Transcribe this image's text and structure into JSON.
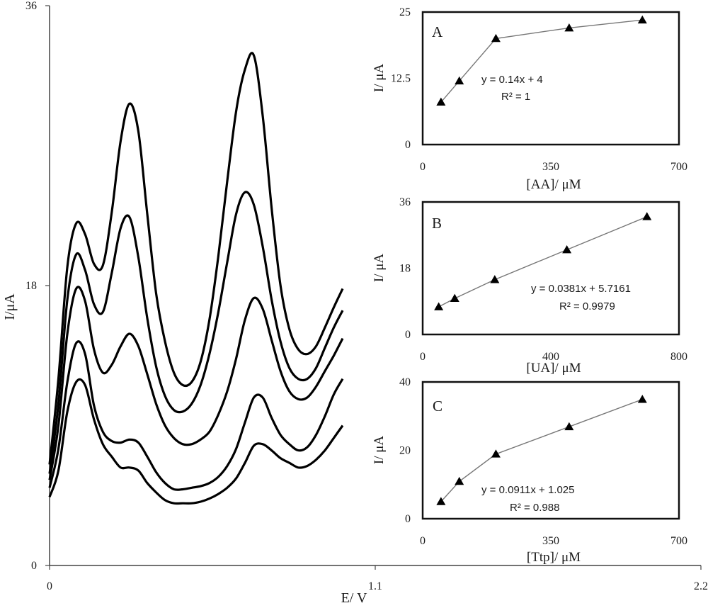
{
  "chart_data": [
    {
      "type": "line",
      "xlabel": "E/ V",
      "ylabel": "I/μA",
      "xlim": [
        0,
        2.2
      ],
      "ylim": [
        0,
        36
      ],
      "xticks": [
        "0",
        "1.1",
        "2.2"
      ],
      "yticks": [
        "0",
        "18",
        "36"
      ],
      "grid": false,
      "series": [
        {
          "x": [
            0.0,
            0.03,
            0.06,
            0.09,
            0.12,
            0.15,
            0.18,
            0.21,
            0.24,
            0.27,
            0.3,
            0.33,
            0.36,
            0.39,
            0.42,
            0.45,
            0.48,
            0.51,
            0.54,
            0.57,
            0.6,
            0.63,
            0.66,
            0.69,
            0.72,
            0.75,
            0.78,
            0.81,
            0.84,
            0.87,
            0.9,
            0.93,
            0.96,
            0.99
          ],
          "values": [
            4.4,
            6.1,
            9.9,
            11.8,
            11.6,
            9.4,
            7.8,
            7.0,
            6.3,
            6.3,
            6.1,
            5.3,
            4.7,
            4.2,
            4.0,
            4.0,
            4.0,
            4.1,
            4.3,
            4.6,
            5.0,
            5.6,
            6.6,
            7.7,
            7.8,
            7.4,
            6.9,
            6.6,
            6.3,
            6.4,
            6.8,
            7.4,
            8.2,
            9.0
          ]
        },
        {
          "x": [
            0.0,
            0.03,
            0.06,
            0.09,
            0.12,
            0.15,
            0.18,
            0.21,
            0.24,
            0.27,
            0.3,
            0.33,
            0.36,
            0.39,
            0.42,
            0.45,
            0.48,
            0.51,
            0.54,
            0.57,
            0.6,
            0.63,
            0.66,
            0.69,
            0.72,
            0.75,
            0.78,
            0.81,
            0.84,
            0.87,
            0.9,
            0.93,
            0.96,
            0.99
          ],
          "values": [
            5.0,
            7.5,
            11.8,
            14.3,
            13.6,
            10.3,
            8.6,
            8.0,
            7.9,
            8.1,
            7.9,
            7.0,
            6.0,
            5.3,
            4.9,
            4.9,
            5.0,
            5.1,
            5.3,
            5.7,
            6.4,
            7.5,
            9.2,
            10.8,
            10.8,
            9.5,
            8.4,
            7.8,
            7.4,
            7.6,
            8.4,
            9.6,
            11.0,
            12.0
          ]
        },
        {
          "x": [
            0.0,
            0.03,
            0.06,
            0.09,
            0.12,
            0.15,
            0.18,
            0.21,
            0.24,
            0.27,
            0.3,
            0.33,
            0.36,
            0.39,
            0.42,
            0.45,
            0.48,
            0.51,
            0.54,
            0.57,
            0.6,
            0.63,
            0.66,
            0.69,
            0.72,
            0.75,
            0.78,
            0.81,
            0.84,
            0.87,
            0.9,
            0.93,
            0.96,
            0.99
          ],
          "values": [
            5.5,
            9.0,
            14.9,
            17.8,
            17.0,
            13.9,
            12.4,
            12.9,
            14.1,
            14.9,
            14.1,
            12.3,
            10.4,
            9.0,
            8.2,
            7.8,
            7.8,
            8.1,
            8.6,
            9.7,
            11.2,
            13.3,
            15.8,
            17.2,
            16.5,
            14.5,
            12.5,
            11.2,
            10.7,
            10.8,
            11.5,
            12.5,
            13.5,
            14.6
          ]
        },
        {
          "x": [
            0.0,
            0.03,
            0.06,
            0.09,
            0.12,
            0.15,
            0.18,
            0.21,
            0.24,
            0.27,
            0.3,
            0.33,
            0.36,
            0.39,
            0.42,
            0.45,
            0.48,
            0.51,
            0.54,
            0.57,
            0.6,
            0.63,
            0.66,
            0.69,
            0.72,
            0.75,
            0.78,
            0.81,
            0.84,
            0.87,
            0.9,
            0.93,
            0.96,
            0.99
          ],
          "values": [
            5.9,
            10.4,
            17.1,
            20.0,
            19.0,
            16.8,
            16.3,
            18.8,
            21.7,
            22.4,
            19.8,
            15.9,
            12.8,
            10.9,
            10.0,
            9.9,
            10.4,
            11.6,
            13.6,
            16.3,
            19.5,
            22.6,
            24.0,
            23.2,
            20.5,
            17.1,
            14.4,
            12.7,
            12.0,
            12.0,
            12.7,
            14.0,
            15.3,
            16.4
          ]
        },
        {
          "x": [
            0.0,
            0.03,
            0.06,
            0.09,
            0.12,
            0.15,
            0.18,
            0.21,
            0.24,
            0.27,
            0.3,
            0.33,
            0.36,
            0.39,
            0.42,
            0.45,
            0.48,
            0.51,
            0.54,
            0.57,
            0.6,
            0.63,
            0.66,
            0.69,
            0.72,
            0.75,
            0.78,
            0.81,
            0.84,
            0.87,
            0.9,
            0.93,
            0.96,
            0.99
          ],
          "values": [
            6.5,
            12.0,
            19.2,
            22.0,
            21.3,
            19.4,
            19.3,
            22.7,
            27.3,
            29.7,
            27.9,
            22.6,
            17.5,
            14.4,
            12.4,
            11.6,
            11.8,
            13.1,
            15.8,
            19.9,
            24.7,
            29.2,
            31.9,
            32.8,
            28.9,
            23.0,
            18.0,
            15.2,
            13.9,
            13.6,
            14.1,
            15.3,
            16.6,
            17.8
          ]
        }
      ]
    },
    {
      "type": "scatter",
      "panel_label": "A",
      "xlabel": "[AA]/ μM",
      "ylabel": "I/ μA",
      "xlim": [
        0,
        700
      ],
      "ylim": [
        0,
        25
      ],
      "xticks": [
        "0",
        "350",
        "700"
      ],
      "yticks": [
        "0",
        "12.5",
        "25"
      ],
      "x": [
        50,
        100,
        200,
        400,
        600
      ],
      "values": [
        8,
        12,
        20,
        22,
        23.5
      ],
      "equation": "y = 0.14x + 4",
      "r2": "R² = 1"
    },
    {
      "type": "scatter",
      "panel_label": "B",
      "xlabel": "[UA]/ μM",
      "ylabel": "I/ μA",
      "xlim": [
        0,
        800
      ],
      "ylim": [
        0,
        36
      ],
      "xticks": [
        "0",
        "400",
        "800"
      ],
      "yticks": [
        "0",
        "18",
        "36"
      ],
      "x": [
        50,
        100,
        225,
        450,
        700
      ],
      "values": [
        7.5,
        9.8,
        14.9,
        23.0,
        32.0
      ],
      "equation": "y = 0.0381x + 5.7161",
      "r2": "R² = 0.9979"
    },
    {
      "type": "scatter",
      "panel_label": "C",
      "xlabel": "[Ttp]/ μM",
      "ylabel": "I/ μA",
      "xlim": [
        0,
        700
      ],
      "ylim": [
        0,
        40
      ],
      "xticks": [
        "0",
        "350",
        "700"
      ],
      "yticks": [
        "0",
        "20",
        "40"
      ],
      "x": [
        50,
        100,
        200,
        400,
        600
      ],
      "values": [
        5,
        10.9,
        18.9,
        26.9,
        34.9
      ],
      "equation": "y = 0.0911x + 1.025",
      "r2": "R² = 0.988"
    }
  ]
}
